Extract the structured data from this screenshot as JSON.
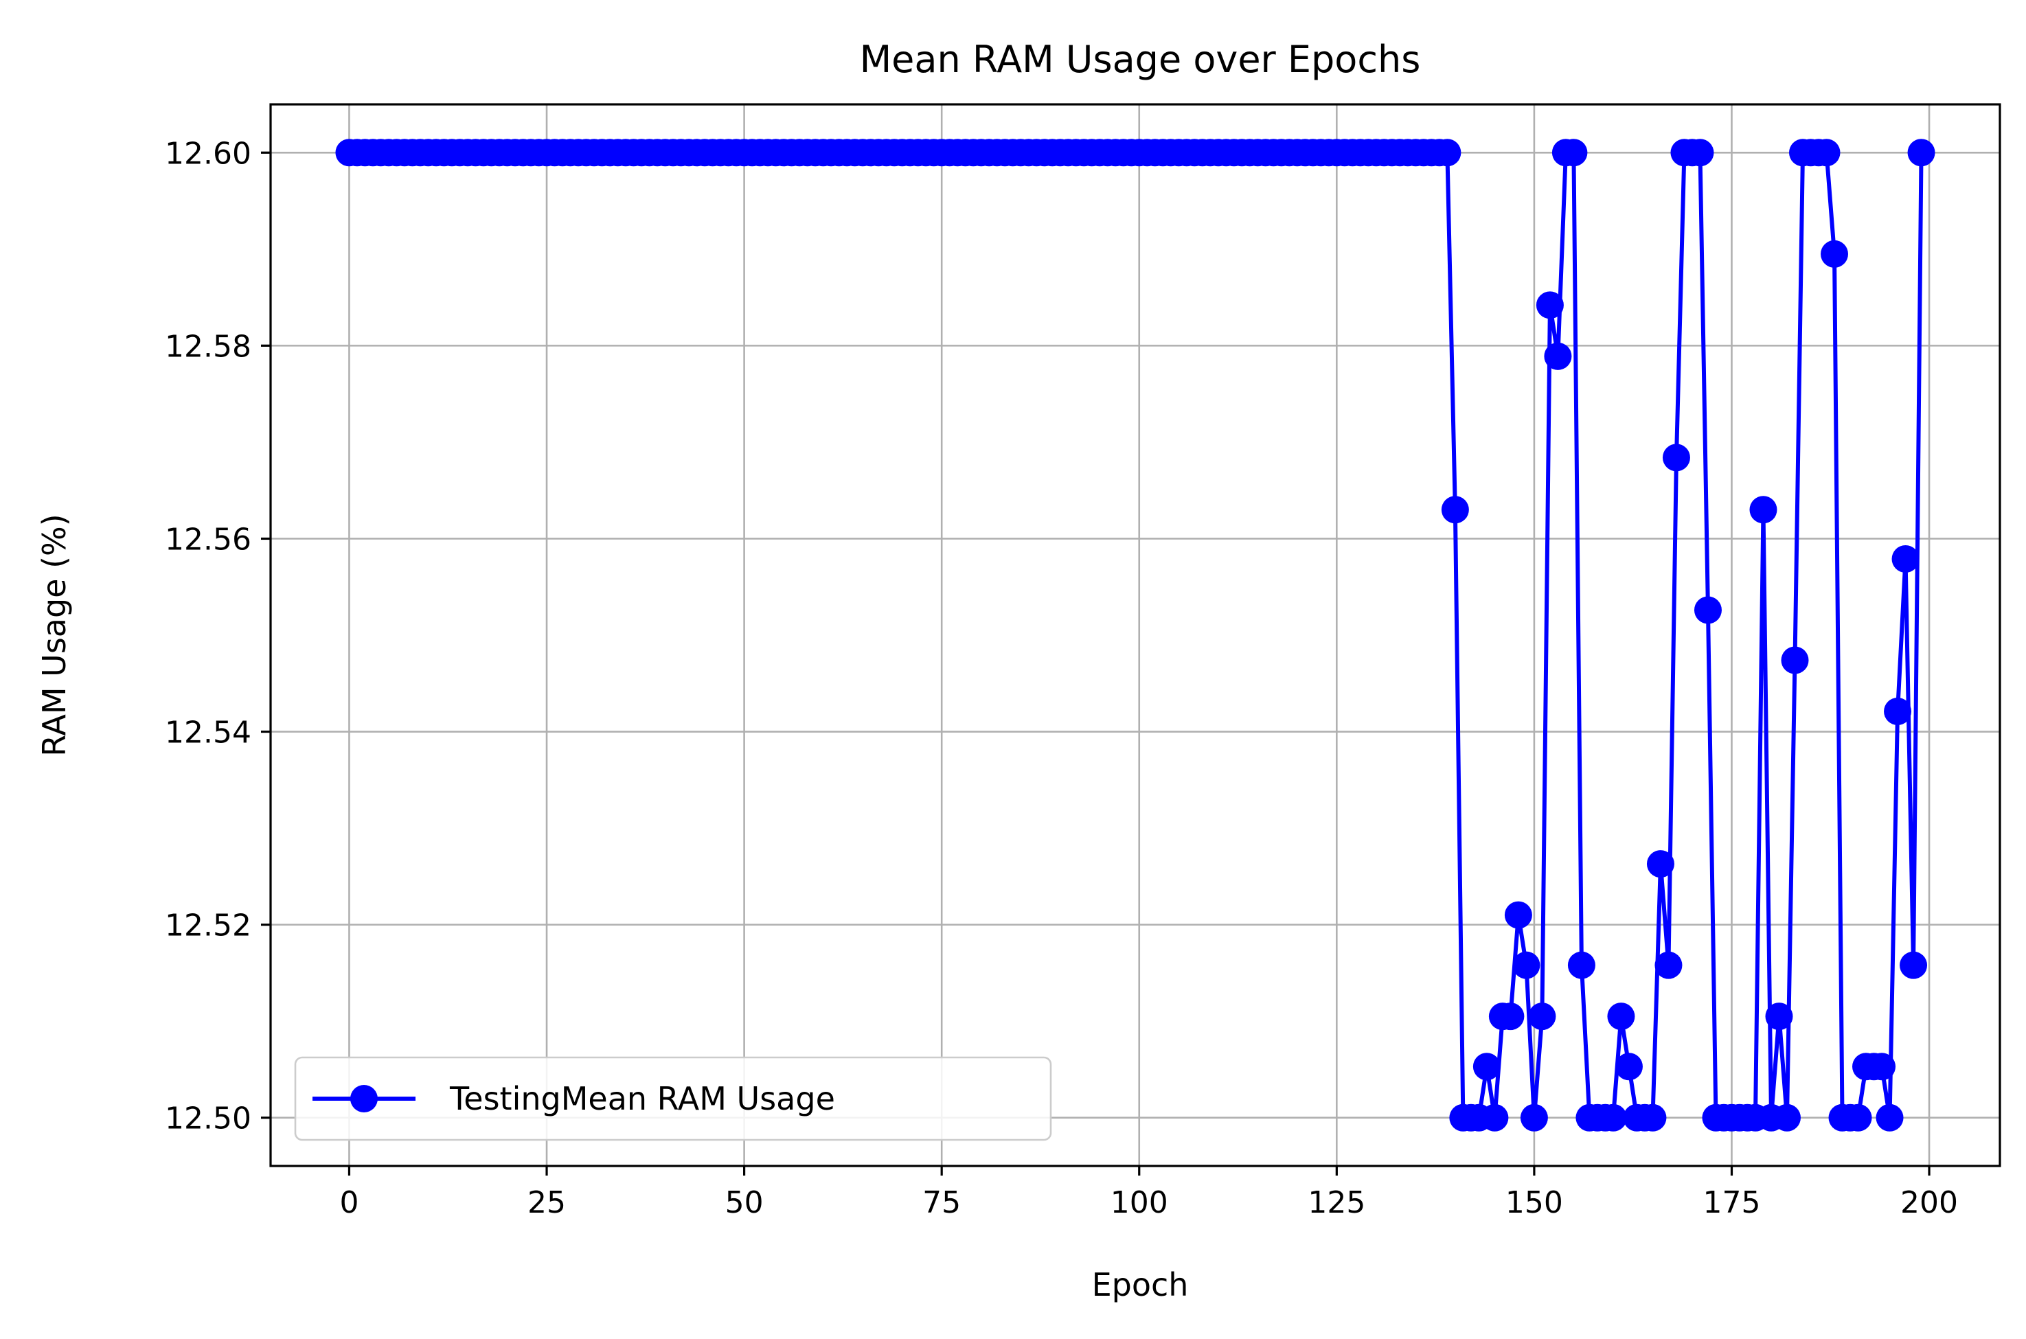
{
  "chart_data": {
    "type": "line",
    "title": "Mean RAM Usage over Epochs",
    "xlabel": "Epoch",
    "ylabel": "RAM Usage (%)",
    "xlim": [
      -9.95,
      208.95
    ],
    "ylim": [
      12.495,
      12.605
    ],
    "xticks": [
      0,
      25,
      50,
      75,
      100,
      125,
      150,
      175,
      200
    ],
    "xtick_labels": [
      "0",
      "25",
      "50",
      "75",
      "100",
      "125",
      "150",
      "175",
      "200"
    ],
    "yticks": [
      12.5,
      12.52,
      12.54,
      12.56,
      12.58,
      12.6
    ],
    "ytick_labels": [
      "12.50",
      "12.52",
      "12.54",
      "12.56",
      "12.58",
      "12.60"
    ],
    "grid": true,
    "legend_position": "lower-left",
    "series": [
      {
        "name": "TestingMean RAM Usage",
        "color": "#0000ff",
        "marker": "circle",
        "x": [
          0,
          1,
          2,
          3,
          4,
          5,
          6,
          7,
          8,
          9,
          10,
          11,
          12,
          13,
          14,
          15,
          16,
          17,
          18,
          19,
          20,
          21,
          22,
          23,
          24,
          25,
          26,
          27,
          28,
          29,
          30,
          31,
          32,
          33,
          34,
          35,
          36,
          37,
          38,
          39,
          40,
          41,
          42,
          43,
          44,
          45,
          46,
          47,
          48,
          49,
          50,
          51,
          52,
          53,
          54,
          55,
          56,
          57,
          58,
          59,
          60,
          61,
          62,
          63,
          64,
          65,
          66,
          67,
          68,
          69,
          70,
          71,
          72,
          73,
          74,
          75,
          76,
          77,
          78,
          79,
          80,
          81,
          82,
          83,
          84,
          85,
          86,
          87,
          88,
          89,
          90,
          91,
          92,
          93,
          94,
          95,
          96,
          97,
          98,
          99,
          100,
          101,
          102,
          103,
          104,
          105,
          106,
          107,
          108,
          109,
          110,
          111,
          112,
          113,
          114,
          115,
          116,
          117,
          118,
          119,
          120,
          121,
          122,
          123,
          124,
          125,
          126,
          127,
          128,
          129,
          130,
          131,
          132,
          133,
          134,
          135,
          136,
          137,
          138,
          139,
          140,
          141,
          142,
          143,
          144,
          145,
          146,
          147,
          148,
          149,
          150,
          151,
          152,
          153,
          154,
          155,
          156,
          157,
          158,
          159,
          160,
          161,
          162,
          163,
          164,
          165,
          166,
          167,
          168,
          169,
          170,
          171,
          172,
          173,
          174,
          175,
          176,
          177,
          178,
          179,
          180,
          181,
          182,
          183,
          184,
          185,
          186,
          187,
          188,
          189,
          190,
          191,
          192,
          193,
          194,
          195,
          196,
          197,
          198,
          199
        ],
        "values": [
          12.6,
          12.6,
          12.6,
          12.6,
          12.6,
          12.6,
          12.6,
          12.6,
          12.6,
          12.6,
          12.6,
          12.6,
          12.6,
          12.6,
          12.6,
          12.6,
          12.6,
          12.6,
          12.6,
          12.6,
          12.6,
          12.6,
          12.6,
          12.6,
          12.6,
          12.6,
          12.6,
          12.6,
          12.6,
          12.6,
          12.6,
          12.6,
          12.6,
          12.6,
          12.6,
          12.6,
          12.6,
          12.6,
          12.6,
          12.6,
          12.6,
          12.6,
          12.6,
          12.6,
          12.6,
          12.6,
          12.6,
          12.6,
          12.6,
          12.6,
          12.6,
          12.6,
          12.6,
          12.6,
          12.6,
          12.6,
          12.6,
          12.6,
          12.6,
          12.6,
          12.6,
          12.6,
          12.6,
          12.6,
          12.6,
          12.6,
          12.6,
          12.6,
          12.6,
          12.6,
          12.6,
          12.6,
          12.6,
          12.6,
          12.6,
          12.6,
          12.6,
          12.6,
          12.6,
          12.6,
          12.6,
          12.6,
          12.6,
          12.6,
          12.6,
          12.6,
          12.6,
          12.6,
          12.6,
          12.6,
          12.6,
          12.6,
          12.6,
          12.6,
          12.6,
          12.6,
          12.6,
          12.6,
          12.6,
          12.6,
          12.6,
          12.6,
          12.6,
          12.6,
          12.6,
          12.6,
          12.6,
          12.6,
          12.6,
          12.6,
          12.6,
          12.6,
          12.6,
          12.6,
          12.6,
          12.6,
          12.6,
          12.6,
          12.6,
          12.6,
          12.6,
          12.6,
          12.6,
          12.6,
          12.6,
          12.6,
          12.6,
          12.6,
          12.6,
          12.6,
          12.6,
          12.6,
          12.6,
          12.6,
          12.6,
          12.6,
          12.6,
          12.6,
          12.6,
          12.6,
          12.563,
          12.5,
          12.5,
          12.5,
          12.5053,
          12.5,
          12.5105,
          12.5105,
          12.521,
          12.5158,
          12.5,
          12.5105,
          12.5842,
          12.5789,
          12.6,
          12.6,
          12.5158,
          12.5,
          12.5,
          12.5,
          12.5,
          12.5105,
          12.5053,
          12.5,
          12.5,
          12.5,
          12.5263,
          12.5158,
          12.5684,
          12.6,
          12.6,
          12.6,
          12.5526,
          12.5,
          12.5,
          12.5,
          12.5,
          12.5,
          12.5,
          12.563,
          12.5,
          12.5105,
          12.5,
          12.5474,
          12.6,
          12.6,
          12.6,
          12.6,
          12.5895,
          12.5,
          12.5,
          12.5,
          12.5053,
          12.5053,
          12.5053,
          12.5,
          12.5421,
          12.5579,
          12.5158,
          12.6
        ]
      }
    ]
  }
}
